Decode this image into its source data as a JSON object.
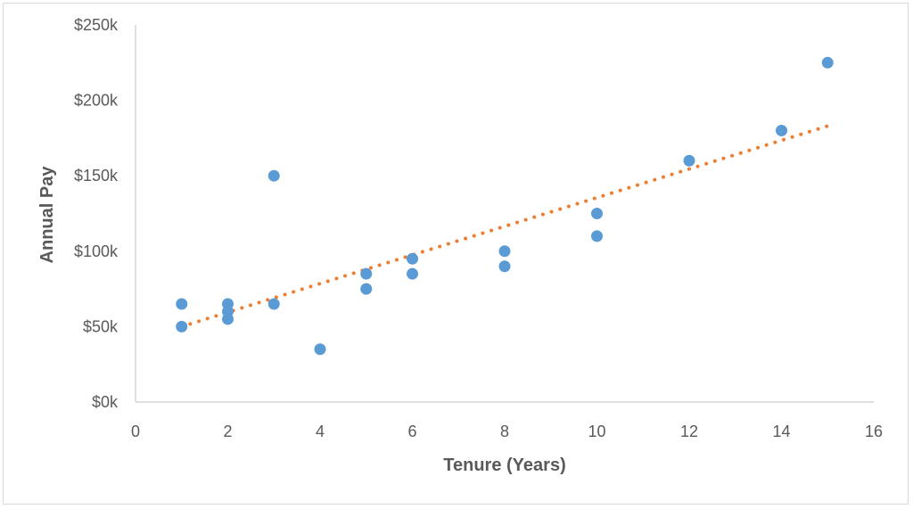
{
  "chart_data": {
    "type": "scatter",
    "title": "",
    "xlabel": "Tenure (Years)",
    "ylabel": "Annual Pay",
    "xlim": [
      0,
      16
    ],
    "ylim": [
      0,
      250000
    ],
    "x_ticks": [
      0,
      2,
      4,
      6,
      8,
      10,
      12,
      14,
      16
    ],
    "y_ticks": [
      0,
      50000,
      100000,
      150000,
      200000,
      250000
    ],
    "y_tick_labels": [
      "$0k",
      "$50k",
      "$100k",
      "$150k",
      "$200k",
      "$250k"
    ],
    "grid": false,
    "legend": "none",
    "series": [
      {
        "points": [
          {
            "x": 1,
            "y": 65000
          },
          {
            "x": 1,
            "y": 50000
          },
          {
            "x": 2,
            "y": 65000
          },
          {
            "x": 2,
            "y": 60000
          },
          {
            "x": 2,
            "y": 55000
          },
          {
            "x": 3,
            "y": 150000
          },
          {
            "x": 3,
            "y": 65000
          },
          {
            "x": 4,
            "y": 35000
          },
          {
            "x": 5,
            "y": 85000
          },
          {
            "x": 5,
            "y": 75000
          },
          {
            "x": 6,
            "y": 95000
          },
          {
            "x": 6,
            "y": 85000
          },
          {
            "x": 8,
            "y": 100000
          },
          {
            "x": 8,
            "y": 90000
          },
          {
            "x": 10,
            "y": 125000
          },
          {
            "x": 10,
            "y": 110000
          },
          {
            "x": 12,
            "y": 160000
          },
          {
            "x": 14,
            "y": 180000
          },
          {
            "x": 15,
            "y": 225000
          }
        ],
        "color": "#5b9bd5"
      }
    ],
    "trendline": {
      "type": "linear",
      "style": "dotted",
      "color": "#ed7d31",
      "x_start": 1,
      "y_start": 50000,
      "x_end": 15,
      "y_end": 183000
    }
  }
}
